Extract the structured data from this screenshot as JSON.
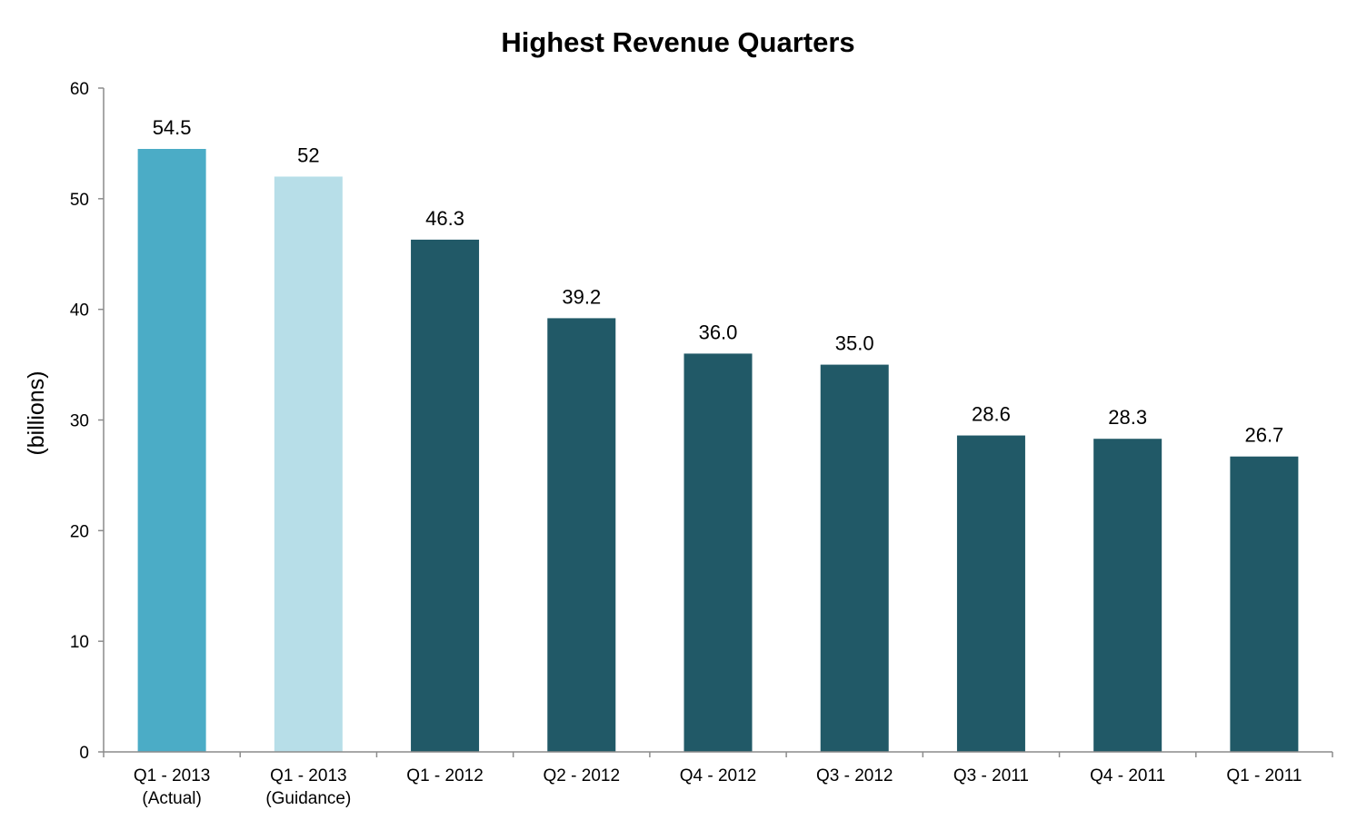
{
  "chart_data": {
    "type": "bar",
    "title": "Highest Revenue Quarters",
    "xlabel": "",
    "ylabel": "(billions)",
    "ylim": [
      0,
      60
    ],
    "yticks": [
      0,
      10,
      20,
      30,
      40,
      50,
      60
    ],
    "grid": false,
    "legend": "none",
    "categories": [
      [
        "Q1 - 2013",
        "(Actual)"
      ],
      [
        "Q1 - 2013",
        "(Guidance)"
      ],
      [
        "Q1 - 2012"
      ],
      [
        "Q2 - 2012"
      ],
      [
        "Q4 - 2012"
      ],
      [
        "Q3 - 2012"
      ],
      [
        "Q3 - 2011"
      ],
      [
        "Q4 - 2011"
      ],
      [
        "Q1 - 2011"
      ]
    ],
    "values": [
      54.5,
      52,
      46.3,
      39.2,
      36.0,
      35.0,
      28.6,
      28.3,
      26.7
    ],
    "data_labels": [
      "54.5",
      "52",
      "46.3",
      "39.2",
      "36.0",
      "35.0",
      "28.6",
      "28.3",
      "26.7"
    ],
    "bar_colors": [
      "#4bacc6",
      "#b7dee8",
      "#215967",
      "#215967",
      "#215967",
      "#215967",
      "#215967",
      "#215967",
      "#215967"
    ]
  }
}
